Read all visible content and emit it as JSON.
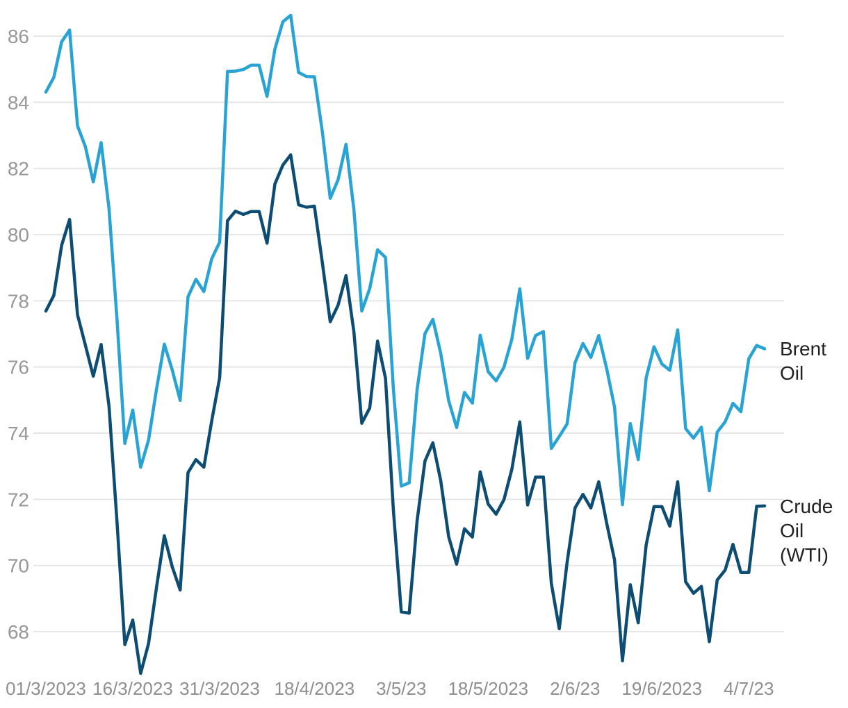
{
  "chart_data": {
    "type": "line",
    "title": "",
    "xlabel": "",
    "ylabel": "",
    "grid": true,
    "legend_position": "right-end-of-lines",
    "y_ticks": [
      68,
      70,
      72,
      74,
      76,
      78,
      80,
      82,
      84,
      86
    ],
    "ylim": [
      66.6,
      87.1
    ],
    "x_tick_labels": [
      "01/3/2023",
      "16/3/2023",
      "31/3/2023",
      "18/4/2023",
      "3/5/23",
      "18/5/2023",
      "2/6/23",
      "19/6/2023",
      "4/7/23"
    ],
    "x_tick_indices": [
      0,
      11,
      22,
      34,
      45,
      56,
      67,
      78,
      89
    ],
    "x_dates": [
      "1/3",
      "2/3",
      "3/3",
      "6/3",
      "7/3",
      "8/3",
      "9/3",
      "10/3",
      "13/3",
      "14/3",
      "15/3",
      "16/3",
      "17/3",
      "20/3",
      "21/3",
      "22/3",
      "23/3",
      "24/3",
      "27/3",
      "28/3",
      "29/3",
      "30/3",
      "31/3",
      "3/4",
      "4/4",
      "5/4",
      "6/4",
      "7/4",
      "10/4",
      "11/4",
      "12/4",
      "13/4",
      "14/4",
      "17/4",
      "18/4",
      "19/4",
      "20/4",
      "21/4",
      "24/4",
      "25/4",
      "26/4",
      "27/4",
      "28/4",
      "1/5",
      "2/5",
      "3/5",
      "4/5",
      "5/5",
      "8/5",
      "9/5",
      "10/5",
      "11/5",
      "12/5",
      "15/5",
      "16/5",
      "17/5",
      "18/5",
      "19/5",
      "22/5",
      "23/5",
      "24/5",
      "25/5",
      "26/5",
      "29/5",
      "30/5",
      "31/5",
      "1/6",
      "2/6",
      "5/6",
      "6/6",
      "7/6",
      "8/6",
      "9/6",
      "12/6",
      "13/6",
      "14/6",
      "15/6",
      "16/6",
      "19/6",
      "20/6",
      "21/6",
      "22/6",
      "23/6",
      "26/6",
      "27/6",
      "28/6",
      "29/6",
      "30/6",
      "3/7",
      "4/7",
      "5/7",
      "6/7"
    ],
    "series": [
      {
        "name": "Brent Oil",
        "label_lines": [
          "Brent",
          "Oil"
        ],
        "color": "#29A2D4",
        "values": [
          84.31,
          84.75,
          85.83,
          86.18,
          83.29,
          82.66,
          81.59,
          82.78,
          80.77,
          77.45,
          73.69,
          74.7,
          72.97,
          73.79,
          75.32,
          76.69,
          75.91,
          74.99,
          78.12,
          78.65,
          78.28,
          79.27,
          79.77,
          84.93,
          84.94,
          84.99,
          85.12,
          85.12,
          84.18,
          85.61,
          86.43,
          86.63,
          84.9,
          84.78,
          84.77,
          83.12,
          81.1,
          81.66,
          82.73,
          80.77,
          77.69,
          78.37,
          79.54,
          79.31,
          75.32,
          72.4,
          72.5,
          75.3,
          77.01,
          77.44,
          76.41,
          74.98,
          74.17,
          75.23,
          74.91,
          76.96,
          75.86,
          75.58,
          75.99,
          76.84,
          78.36,
          76.26,
          76.95,
          77.07,
          73.54,
          73.9,
          74.28,
          76.13,
          76.71,
          76.29,
          76.95,
          75.96,
          74.79,
          71.84,
          74.29,
          73.2,
          75.67,
          76.61,
          76.09,
          75.9,
          77.12,
          74.14,
          73.85,
          74.18,
          72.26,
          74.03,
          74.34,
          74.9,
          74.65,
          76.25,
          76.65,
          76.55
        ]
      },
      {
        "name": "Crude Oil (WTI)",
        "label_lines": [
          "Crude",
          "Oil",
          "(WTI)"
        ],
        "color": "#0E4D73",
        "values": [
          77.69,
          78.16,
          79.68,
          80.46,
          77.58,
          76.66,
          75.72,
          76.68,
          74.8,
          71.33,
          67.61,
          68.35,
          66.74,
          67.64,
          69.33,
          70.9,
          69.96,
          69.26,
          72.81,
          73.2,
          72.97,
          74.37,
          75.67,
          80.42,
          80.71,
          80.61,
          80.7,
          80.7,
          79.74,
          81.53,
          82.1,
          82.41,
          80.9,
          80.83,
          80.86,
          79.16,
          77.37,
          77.87,
          78.76,
          77.07,
          74.3,
          74.76,
          76.78,
          75.66,
          71.66,
          68.6,
          68.56,
          71.34,
          73.16,
          73.71,
          72.56,
          70.87,
          70.04,
          71.11,
          70.86,
          72.83,
          71.86,
          71.55,
          71.99,
          72.91,
          74.34,
          71.83,
          72.67,
          72.67,
          69.46,
          68.09,
          70.1,
          71.74,
          72.15,
          71.74,
          72.53,
          71.29,
          70.17,
          67.12,
          69.42,
          68.27,
          70.62,
          71.78,
          71.78,
          71.19,
          72.53,
          69.51,
          69.16,
          69.37,
          67.7,
          69.56,
          69.86,
          70.64,
          69.79,
          69.79,
          71.79,
          71.8
        ]
      }
    ]
  },
  "colors": {
    "background": "#FFFFFF",
    "gridline": "#E6E6E6",
    "y_axis_text": "#979797",
    "x_axis_text": "#8F8F8F",
    "legend_text": "#212121",
    "brent_line": "#29A2D4",
    "wti_line": "#0E4D73"
  }
}
